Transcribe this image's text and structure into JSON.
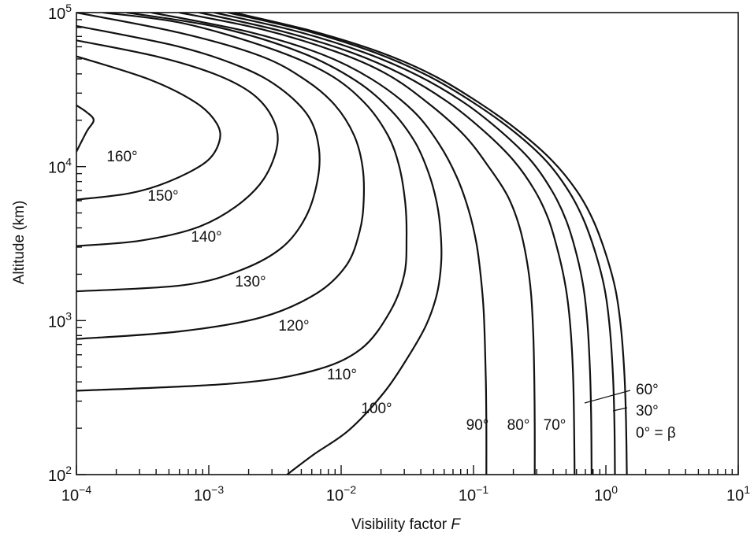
{
  "chart_data": {
    "type": "line",
    "title": "",
    "xlabel": "Visibility factor F",
    "ylabel": "Altitude (km)",
    "x_scale": "log",
    "y_scale": "log",
    "xlim": [
      0.0001,
      10
    ],
    "ylim": [
      100,
      100000
    ],
    "grid": false,
    "legend": "none",
    "x_ticks": [
      {
        "value": 0.0001,
        "base": "10",
        "exp": "−4"
      },
      {
        "value": 0.001,
        "base": "10",
        "exp": "−3"
      },
      {
        "value": 0.01,
        "base": "10",
        "exp": "−2"
      },
      {
        "value": 0.1,
        "base": "10",
        "exp": "−1"
      },
      {
        "value": 1,
        "base": "10",
        "exp": "0"
      },
      {
        "value": 10,
        "base": "10",
        "exp": "1"
      }
    ],
    "y_ticks": [
      {
        "value": 100,
        "base": "10",
        "exp": "2"
      },
      {
        "value": 1000,
        "base": "10",
        "exp": "3"
      },
      {
        "value": 10000,
        "base": "10",
        "exp": "4"
      },
      {
        "value": 100000,
        "base": "10",
        "exp": "5"
      }
    ],
    "series": [
      {
        "name": "160°",
        "points": [
          [
            0.0001,
            25000
          ],
          [
            0.00012,
            22500
          ],
          [
            0.000135,
            20000
          ],
          [
            0.00012,
            17000
          ],
          [
            0.0001,
            12500
          ]
        ]
      },
      {
        "name": "150°",
        "points": [
          [
            0.0001,
            52000
          ],
          [
            0.00035,
            37000
          ],
          [
            0.0008,
            26000
          ],
          [
            0.00115,
            19000
          ],
          [
            0.0012,
            14500
          ],
          [
            0.00095,
            10700
          ],
          [
            0.0005,
            8000
          ],
          [
            0.00025,
            6700
          ],
          [
            0.0001,
            6100
          ]
        ]
      },
      {
        "name": "140°",
        "points": [
          [
            0.0001,
            66000
          ],
          [
            0.0004,
            52000
          ],
          [
            0.0011,
            40000
          ],
          [
            0.0021,
            30000
          ],
          [
            0.003,
            21000
          ],
          [
            0.0033,
            14000
          ],
          [
            0.0026,
            8300
          ],
          [
            0.0016,
            5500
          ],
          [
            0.0008,
            4000
          ],
          [
            0.0003,
            3300
          ],
          [
            0.0001,
            3050
          ]
        ]
      },
      {
        "name": "130°",
        "points": [
          [
            0.0001,
            82000
          ],
          [
            0.0006,
            60000
          ],
          [
            0.0018,
            44000
          ],
          [
            0.0035,
            32000
          ],
          [
            0.0057,
            21000
          ],
          [
            0.0068,
            13000
          ],
          [
            0.0066,
            8000
          ],
          [
            0.0054,
            4700
          ],
          [
            0.0036,
            3000
          ],
          [
            0.0018,
            2150
          ],
          [
            0.00065,
            1700
          ],
          [
            0.0001,
            1550
          ]
        ]
      },
      {
        "name": "120°",
        "points": [
          [
            0.0001,
            100000
          ],
          [
            0.0006,
            74000
          ],
          [
            0.0025,
            52000
          ],
          [
            0.0055,
            36000
          ],
          [
            0.009,
            25000
          ],
          [
            0.0125,
            16000
          ],
          [
            0.0145,
            10000
          ],
          [
            0.0148,
            6000
          ],
          [
            0.0138,
            3800
          ],
          [
            0.011,
            2300
          ],
          [
            0.0065,
            1500
          ],
          [
            0.0025,
            1050
          ],
          [
            0.0006,
            850
          ],
          [
            0.0001,
            760
          ]
        ]
      },
      {
        "name": "110°",
        "points": [
          [
            0.00016,
            100000
          ],
          [
            0.00065,
            85000
          ],
          [
            0.003,
            58000
          ],
          [
            0.008,
            40000
          ],
          [
            0.015,
            26000
          ],
          [
            0.0225,
            16000
          ],
          [
            0.0275,
            10000
          ],
          [
            0.0305,
            5800
          ],
          [
            0.0312,
            3500
          ],
          [
            0.03,
            2000
          ],
          [
            0.0235,
            1150
          ],
          [
            0.014,
            650
          ],
          [
            0.006,
            470
          ],
          [
            0.0015,
            390
          ],
          [
            0.0001,
            350
          ]
        ]
      },
      {
        "name": "100°",
        "points": [
          [
            0.00024,
            100000
          ],
          [
            0.0012,
            80000
          ],
          [
            0.005,
            55000
          ],
          [
            0.013,
            36000
          ],
          [
            0.024,
            23000
          ],
          [
            0.036,
            14500
          ],
          [
            0.046,
            9000
          ],
          [
            0.053,
            5700
          ],
          [
            0.0565,
            3700
          ],
          [
            0.057,
            2400
          ],
          [
            0.053,
            1500
          ],
          [
            0.044,
            940
          ],
          [
            0.032,
            580
          ],
          [
            0.021,
            340
          ],
          [
            0.0115,
            195
          ],
          [
            0.0062,
            135
          ],
          [
            0.0039,
            100
          ]
        ]
      },
      {
        "name": "90°",
        "points": [
          [
            0.00037,
            100000
          ],
          [
            0.002,
            75000
          ],
          [
            0.007,
            54000
          ],
          [
            0.017,
            37000
          ],
          [
            0.035,
            23000
          ],
          [
            0.055,
            14000
          ],
          [
            0.075,
            8500
          ],
          [
            0.092,
            5200
          ],
          [
            0.105,
            3200
          ],
          [
            0.113,
            2000
          ],
          [
            0.119,
            1200
          ],
          [
            0.122,
            700
          ],
          [
            0.124,
            400
          ],
          [
            0.125,
            220
          ],
          [
            0.125,
            100
          ]
        ]
      },
      {
        "name": "80°",
        "points": [
          [
            0.0006,
            100000
          ],
          [
            0.0025,
            78000
          ],
          [
            0.009,
            56000
          ],
          [
            0.022,
            40000
          ],
          [
            0.045,
            26000
          ],
          [
            0.085,
            16000
          ],
          [
            0.13,
            10000
          ],
          [
            0.18,
            6500
          ],
          [
            0.22,
            4200
          ],
          [
            0.252,
            2500
          ],
          [
            0.272,
            1500
          ],
          [
            0.283,
            800
          ],
          [
            0.288,
            400
          ],
          [
            0.29,
            200
          ],
          [
            0.29,
            100
          ]
        ]
      },
      {
        "name": "70°",
        "points": [
          [
            0.00085,
            100000
          ],
          [
            0.0035,
            76000
          ],
          [
            0.012,
            55000
          ],
          [
            0.03,
            39000
          ],
          [
            0.065,
            26000
          ],
          [
            0.12,
            17000
          ],
          [
            0.2,
            11000
          ],
          [
            0.29,
            7000
          ],
          [
            0.37,
            4500
          ],
          [
            0.44,
            2700
          ],
          [
            0.5,
            1600
          ],
          [
            0.54,
            900
          ],
          [
            0.565,
            450
          ],
          [
            0.575,
            220
          ],
          [
            0.58,
            100
          ]
        ]
      },
      {
        "name": "60°",
        "points": [
          [
            0.0011,
            100000
          ],
          [
            0.0045,
            76000
          ],
          [
            0.015,
            55000
          ],
          [
            0.038,
            39000
          ],
          [
            0.085,
            26000
          ],
          [
            0.16,
            17000
          ],
          [
            0.27,
            11000
          ],
          [
            0.39,
            7000
          ],
          [
            0.5,
            4500
          ],
          [
            0.6,
            2700
          ],
          [
            0.68,
            1600
          ],
          [
            0.73,
            900
          ],
          [
            0.76,
            450
          ],
          [
            0.775,
            220
          ],
          [
            0.78,
            100
          ]
        ]
      },
      {
        "name": "30°",
        "points": [
          [
            0.0014,
            100000
          ],
          [
            0.0055,
            76000
          ],
          [
            0.018,
            55000
          ],
          [
            0.045,
            39000
          ],
          [
            0.1,
            26000
          ],
          [
            0.2,
            17000
          ],
          [
            0.35,
            11000
          ],
          [
            0.52,
            7000
          ],
          [
            0.68,
            4500
          ],
          [
            0.84,
            2700
          ],
          [
            0.98,
            1600
          ],
          [
            1.07,
            900
          ],
          [
            1.13,
            450
          ],
          [
            1.16,
            220
          ],
          [
            1.17,
            100
          ]
        ]
      },
      {
        "name": "0° = β",
        "points": [
          [
            0.00155,
            100000
          ],
          [
            0.006,
            76000
          ],
          [
            0.02,
            55000
          ],
          [
            0.05,
            39000
          ],
          [
            0.11,
            26000
          ],
          [
            0.22,
            17000
          ],
          [
            0.39,
            11000
          ],
          [
            0.6,
            7000
          ],
          [
            0.8,
            4500
          ],
          [
            1.0,
            2700
          ],
          [
            1.18,
            1600
          ],
          [
            1.3,
            900
          ],
          [
            1.38,
            450
          ],
          [
            1.42,
            220
          ],
          [
            1.44,
            100
          ]
        ]
      }
    ]
  }
}
